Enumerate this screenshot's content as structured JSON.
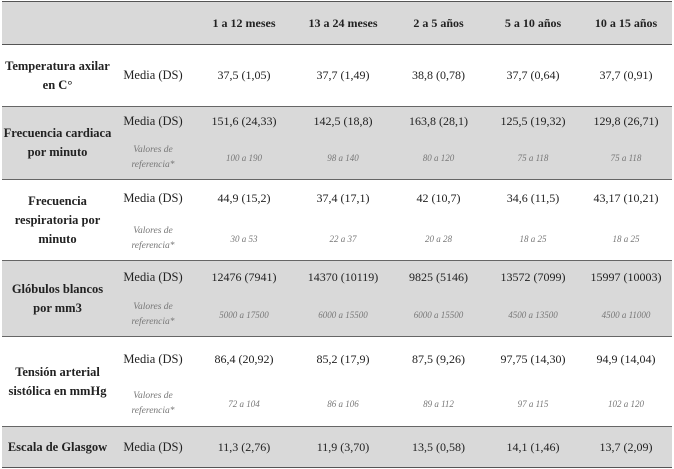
{
  "header": {
    "col0": "",
    "col1": "",
    "ages": [
      "1 a 12 meses",
      "13 a 24 meses",
      "2 a 5 años",
      "5 a 10 años",
      "10 a 15 años"
    ]
  },
  "rows": [
    {
      "param": "Temperatura axilar en C°",
      "mean_label": "Media (DS)",
      "means": [
        "37,5 (1,05)",
        "37,7 (1,49)",
        "38,8 (0,78)",
        "37,7 (0,64)",
        "37,7 (0,91)"
      ]
    },
    {
      "param": "Frecuencia cardiaca por minuto",
      "mean_label": "Media (DS)",
      "means": [
        "151,6 (24,33)",
        "142,5 (18,8)",
        "163,8 (28,1)",
        "125,5 (19,32)",
        "129,8 (26,71)"
      ],
      "ref_label": "Valores de referencia*",
      "refs": [
        "100 a 190",
        "98 a 140",
        "80 a 120",
        "75 a 118",
        "75 a 118"
      ]
    },
    {
      "param": "Frecuencia respiratoria por minuto",
      "mean_label": "Media (DS)",
      "means": [
        "44,9 (15,2)",
        "37,4 (17,1)",
        "42 (10,7)",
        "34,6 (11,5)",
        "43,17 (10,21)"
      ],
      "ref_label": "Valores de referencia*",
      "refs": [
        "30 a 53",
        "22 a 37",
        "20 a 28",
        "18 a 25",
        "18 a 25"
      ]
    },
    {
      "param": "Glóbulos blancos por mm3",
      "mean_label": "Media (DS)",
      "means": [
        "12476 (7941)",
        "14370 (10119)",
        "9825 (5146)",
        "13572 (7099)",
        "15997 (10003)"
      ],
      "ref_label": "Valores de referencia*",
      "refs": [
        "5000 a 17500",
        "6000 a 15500",
        "6000 a 15500",
        "4500 a 13500",
        "4500 a 11000"
      ]
    },
    {
      "param": "Tensión arterial sistólica en mmHg",
      "mean_label": "Media (DS)",
      "means": [
        "86,4 (20,92)",
        "85,2 (17,9)",
        "87,5 (9,26)",
        "97,75 (14,30)",
        "94,9 (14,04)"
      ],
      "ref_label": "Valores de referencia*",
      "refs": [
        "72 a 104",
        "86 a 106",
        "89 a 112",
        "97 a 115",
        "102 a 120"
      ]
    },
    {
      "param": "Escala de Glasgow",
      "mean_label": "Media (DS)",
      "means": [
        "11,3 (2,76)",
        "11,9 (3,70)",
        "13,5 (0,58)",
        "14,1 (1,46)",
        "13,7 (2,09)"
      ]
    }
  ]
}
